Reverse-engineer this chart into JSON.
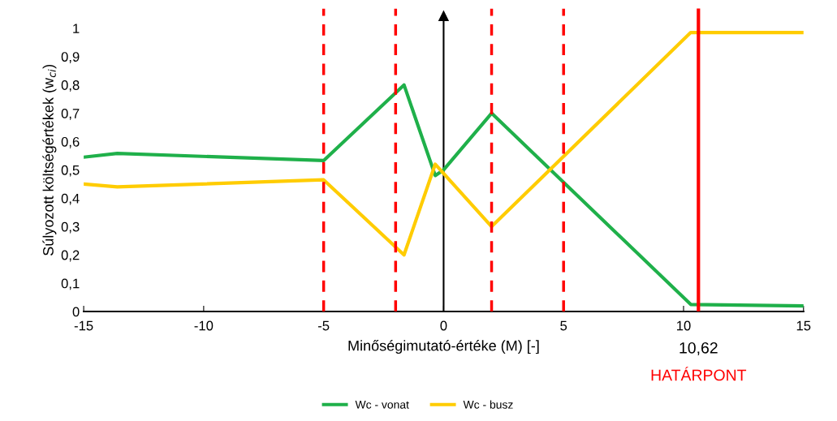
{
  "chart_data": {
    "type": "line",
    "xlabel": "Minőségimutató-értéke (M) [-]",
    "ylabel": "Súlyozott költségértékek (w$_{ci}$)",
    "xlim": [
      -15,
      15
    ],
    "xticks": [
      -15,
      -10,
      -5,
      0,
      5,
      10,
      15
    ],
    "ylim": [
      0,
      1.07
    ],
    "yticks": [
      0,
      {
        "value": 0.1,
        "label": "0,1"
      },
      {
        "value": 0.2,
        "label": "0,2"
      },
      {
        "value": 0.3,
        "label": "0,3"
      },
      {
        "value": 0.4,
        "label": "0,4"
      },
      {
        "value": 0.5,
        "label": "0,5"
      },
      {
        "value": 0.6,
        "label": "0,6"
      },
      {
        "value": 0.7,
        "label": "0,7"
      },
      {
        "value": 0.8,
        "label": "0,8"
      },
      {
        "value": 0.9,
        "label": "0,9"
      },
      1
    ],
    "series": [
      {
        "name": "Wc - vonat",
        "color": "#1fb04a",
        "x": [
          -15,
          -13.6,
          -5,
          -1.65,
          -0.35,
          0,
          2,
          10.3,
          15
        ],
        "values": [
          0.545,
          0.558,
          0.533,
          0.8,
          0.48,
          0.5,
          0.7,
          0.025,
          0.02
        ]
      },
      {
        "name": "Wc - busz",
        "color": "#ffcc00",
        "x": [
          -15,
          -13.6,
          -5,
          -1.65,
          -0.35,
          2,
          10.3,
          15
        ],
        "values": [
          0.45,
          0.44,
          0.465,
          0.2,
          0.52,
          0.3,
          0.985,
          0.985
        ]
      }
    ],
    "ref_lines": [
      {
        "axis": "x",
        "value": 0,
        "color": "#000000",
        "line_style": "solid"
      },
      {
        "axis": "x",
        "value": -5,
        "color": "#ff0000",
        "line_style": "dashed"
      },
      {
        "axis": "x",
        "value": -2,
        "color": "#ff0000",
        "line_style": "dashed"
      },
      {
        "axis": "x",
        "value": 2,
        "color": "#ff0000",
        "line_style": "dashed"
      },
      {
        "axis": "x",
        "value": 5,
        "color": "#ff0000",
        "line_style": "dashed"
      },
      {
        "axis": "x",
        "value": 10.62,
        "color": "#ff0000",
        "line_style": "solid",
        "label": "HATÁRPONT"
      }
    ],
    "annotations": [
      "10,62"
    ],
    "legend": "bottom",
    "grid": false,
    "marker": "none",
    "line_style": "solid"
  }
}
